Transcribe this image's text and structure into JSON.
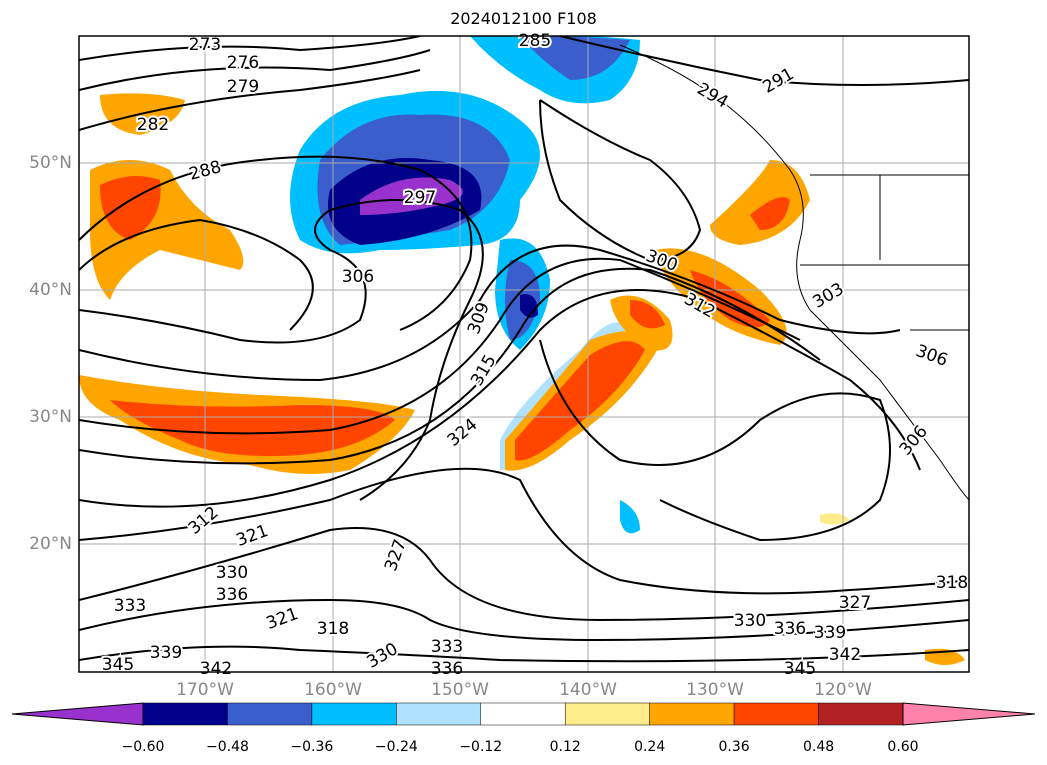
{
  "title": "2024012100 F108",
  "lat_labels": [
    "50°N",
    "40°N",
    "30°N",
    "20°N"
  ],
  "lon_labels": [
    "170°W",
    "160°W",
    "150°W",
    "140°W",
    "130°W",
    "120°W"
  ],
  "colorbar": {
    "ticks": [
      "−0.60",
      "−0.48",
      "−0.36",
      "−0.24",
      "−0.12",
      "0.12",
      "0.24",
      "0.36",
      "0.48",
      "0.60"
    ],
    "colors": [
      "#9932CC",
      "#00008B",
      "#3A5FCD",
      "#00BFFF",
      "#B0E2FF",
      "#FFFFFF",
      "#FFEC8B",
      "#FFA500",
      "#FF4500",
      "#B22222",
      "#FF82AB"
    ]
  },
  "contour_labels": [
    "273",
    "276",
    "279",
    "282",
    "288",
    "297",
    "306",
    "309",
    "315",
    "324",
    "300",
    "312",
    "303",
    "306",
    "306",
    "291",
    "294",
    "285",
    "312",
    "321",
    "330",
    "336",
    "333",
    "321",
    "318",
    "327",
    "345",
    "339",
    "342",
    "330",
    "333",
    "336",
    "318",
    "327",
    "330",
    "336",
    "339",
    "342",
    "345"
  ]
}
